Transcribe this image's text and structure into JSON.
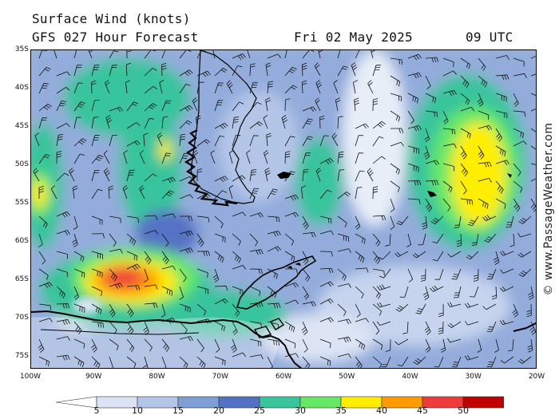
{
  "header": {
    "title": "Surface Wind (knots)",
    "model_line": "GFS 027 Hour Forecast",
    "date": "Fri 02 May 2025",
    "time": "09 UTC"
  },
  "credit": "© www.PassageWeather.com",
  "map": {
    "region": "Southern South America, Drake Passage, South Atlantic",
    "lat_labels": [
      "35S",
      "40S",
      "45S",
      "50S",
      "55S",
      "60S",
      "65S",
      "70S",
      "75S"
    ],
    "lon_labels": [
      "100W",
      "90W",
      "80W",
      "70W",
      "60W",
      "50W",
      "40W",
      "30W",
      "20W"
    ]
  },
  "colorbar": {
    "ticks": [
      "5",
      "10",
      "15",
      "20",
      "25",
      "30",
      "35",
      "40",
      "45",
      "50"
    ],
    "colors": [
      "#ffffff",
      "#dce4f4",
      "#b4c6e8",
      "#7f9ed6",
      "#5472c4",
      "#38c49c",
      "#66e866",
      "#ffee00",
      "#ff9a00",
      "#ee3b3b",
      "#c00000",
      "#c000c0"
    ]
  }
}
